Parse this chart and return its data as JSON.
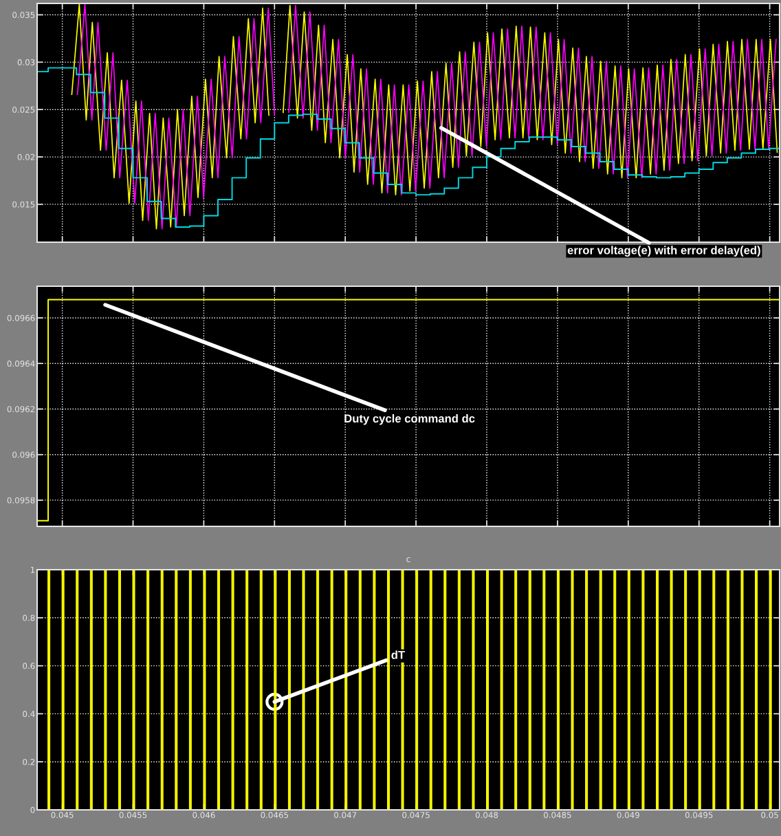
{
  "chart_data": [
    {
      "type": "line",
      "xlim": [
        0.044822,
        0.05007
      ],
      "ylim": [
        0.011,
        0.0362
      ],
      "xticks": [
        0.045,
        0.0455,
        0.046,
        0.0465,
        0.047,
        0.0475,
        0.048,
        0.0485,
        0.049,
        0.0495,
        0.05
      ],
      "yticks": [
        0.015,
        0.02,
        0.025,
        0.03,
        0.035
      ],
      "tick_labels": "y",
      "grid": true,
      "annotations": [
        {
          "text": "error voltage(e) with error delay(ed)",
          "x": 0.047678,
          "y": 0.02306
        }
      ],
      "series": [
        {
          "color": "#ffff00",
          "x": [
            0.045067,
            0.04512,
            0.045169,
            0.045212,
            0.04527,
            0.045318,
            0.045366,
            0.045419,
            0.045472,
            0.04552,
            0.045568,
            0.045617,
            0.045665,
            0.045713,
            0.045766,
            0.045814,
            0.045862,
            0.045915,
            0.045959,
            0.046012,
            0.04606,
            0.046108,
            0.046161,
            0.046209,
            0.046262,
            0.046315,
            0.046363,
            0.046416,
            0.04646,
            0.046513,
            0.046561,
            0.046609,
            0.046662,
            0.04671,
            0.046763,
            0.046811,
            0.046859,
            0.046912,
            0.046961,
            0.047014,
            0.047062,
            0.04711,
            0.047158,
            0.047211,
            0.047259,
            0.047307,
            0.047356,
            0.047409,
            0.047457,
            0.04751,
            0.047558,
            0.047611,
            0.047659,
            0.047712,
            0.04776,
            0.047808,
            0.047856,
            0.047909,
            0.047958,
            0.048006,
            0.048059,
            0.048107,
            0.04816,
            0.048208,
            0.048256,
            0.048309,
            0.048357,
            0.04841,
            0.048459,
            0.048507,
            0.048555,
            0.048608,
            0.048656,
            0.048704,
            0.048752,
            0.048805,
            0.048854,
            0.048907,
            0.048955,
            0.049003,
            0.049056,
            0.049104,
            0.049157,
            0.049205,
            0.049253,
            0.049302,
            0.049355,
            0.049403,
            0.049451,
            0.049504,
            0.049552,
            0.0496,
            0.049653,
            0.049701,
            0.049754,
            0.049803,
            0.049856,
            0.049904,
            0.049952,
            0.050005,
            0.050053
          ],
          "values": [
            0.0266,
            0.0361,
            0.0239,
            0.0342,
            0.0207,
            0.031,
            0.0178,
            0.0281,
            0.0151,
            0.0259,
            0.0133,
            0.0246,
            0.0124,
            0.0241,
            0.0126,
            0.025,
            0.0138,
            0.0264,
            0.0157,
            0.0282,
            0.0178,
            0.0306,
            0.0199,
            0.0327,
            0.0219,
            0.0346,
            0.0236,
            0.0357,
            0.0244,
            null,
            0.0247,
            0.036,
            0.0241,
            0.0353,
            0.0228,
            0.0339,
            0.0215,
            0.0324,
            0.0199,
            0.0308,
            0.0184,
            0.0293,
            0.0171,
            0.0282,
            0.0162,
            0.0276,
            0.016,
            0.0276,
            0.0164,
            0.028,
            0.0167,
            0.029,
            0.0178,
            0.0299,
            0.0189,
            0.0311,
            0.0201,
            0.0321,
            0.0211,
            0.0331,
            0.0218,
            0.0335,
            0.022,
            0.0338,
            0.022,
            0.0337,
            0.0218,
            0.0331,
            0.0213,
            0.0324,
            0.0204,
            0.0315,
            0.0195,
            0.0306,
            0.0188,
            0.0301,
            0.0182,
            0.0296,
            0.0178,
            0.0293,
            0.0178,
            0.0294,
            0.0182,
            0.0297,
            0.0186,
            0.0303,
            0.0193,
            0.0308,
            0.0196,
            0.0314,
            0.0201,
            0.0319,
            0.0204,
            0.0322,
            0.0207,
            0.0324,
            0.0208,
            0.0324,
            0.0208,
            0.0324,
            0.0205
          ]
        },
        {
          "color": "#ff00ff",
          "x": [
            0.045107,
            0.04516,
            0.045209,
            0.045252,
            0.04531,
            0.045358,
            0.045406,
            0.045459,
            0.045512,
            0.04556,
            0.045608,
            0.045657,
            0.045705,
            0.045753,
            0.045806,
            0.045854,
            0.045902,
            0.045955,
            0.045999,
            0.046052,
            0.0461,
            0.046148,
            0.046201,
            0.046249,
            0.046302,
            0.046355,
            0.046403,
            0.046456,
            0.0465,
            0.046553,
            0.046601,
            0.046649,
            0.046702,
            0.04675,
            0.046803,
            0.046851,
            0.046899,
            0.046952,
            0.047001,
            0.047054,
            0.047102,
            0.04715,
            0.047198,
            0.047251,
            0.047299,
            0.047347,
            0.047396,
            0.047449,
            0.047497,
            0.04755,
            0.047598,
            0.047651,
            0.047699,
            0.047752,
            0.0478,
            0.047848,
            0.047896,
            0.047949,
            0.047998,
            0.048046,
            0.048099,
            0.048147,
            0.0482,
            0.048248,
            0.048296,
            0.048349,
            0.048397,
            0.04845,
            0.048499,
            0.048547,
            0.048595,
            0.048648,
            0.048696,
            0.048744,
            0.048792,
            0.048845,
            0.048894,
            0.048947,
            0.048995,
            0.049043,
            0.049096,
            0.049144,
            0.049197,
            0.049245,
            0.049293,
            0.049342,
            0.049395,
            0.049443,
            0.049491,
            0.049544,
            0.049592,
            0.04964,
            0.049693,
            0.049741,
            0.049794,
            0.049843,
            0.049896,
            0.049944,
            0.049992,
            0.050045
          ],
          "values": [
            0.0266,
            0.0361,
            0.0239,
            0.0342,
            0.0207,
            0.031,
            0.0178,
            0.0281,
            0.0151,
            0.0259,
            0.0133,
            0.0246,
            0.0124,
            0.0241,
            0.0126,
            0.025,
            0.0138,
            0.0264,
            0.0157,
            0.0282,
            0.0178,
            0.0306,
            0.0199,
            0.0327,
            0.0219,
            0.0346,
            0.0236,
            0.0357,
            0.0244,
            null,
            0.0247,
            0.036,
            0.0241,
            0.0353,
            0.0228,
            0.0339,
            0.0215,
            0.0324,
            0.0199,
            0.0308,
            0.0184,
            0.0293,
            0.0171,
            0.0282,
            0.0162,
            0.0276,
            0.016,
            0.0276,
            0.0164,
            0.028,
            0.0167,
            0.029,
            0.0178,
            0.0299,
            0.0189,
            0.0311,
            0.0201,
            0.0321,
            0.0211,
            0.0331,
            0.0218,
            0.0335,
            0.022,
            0.0338,
            0.022,
            0.0337,
            0.0218,
            0.0331,
            0.0213,
            0.0324,
            0.0204,
            0.0315,
            0.0195,
            0.0306,
            0.0188,
            0.0301,
            0.0182,
            0.0296,
            0.0178,
            0.0293,
            0.0178,
            0.0294,
            0.0182,
            0.0297,
            0.0186,
            0.0303,
            0.0193,
            0.0308,
            0.0196,
            0.0314,
            0.0201,
            0.0319,
            0.0204,
            0.0322,
            0.0207,
            0.0324,
            0.0208,
            0.0324,
            0.0208,
            0.0324
          ]
        },
        {
          "type": "step",
          "color": "#00d8e0",
          "x": [
            0.044822,
            0.0449,
            0.045,
            0.0451,
            0.0452,
            0.0453,
            0.0454,
            0.0455,
            0.0456,
            0.0457,
            0.0458,
            0.0459,
            0.046,
            0.0461,
            0.0462,
            0.0463,
            0.0464,
            0.0465,
            0.0466,
            0.0467,
            0.0468,
            0.0469,
            0.047,
            0.0471,
            0.0472,
            0.0473,
            0.0474,
            0.0475,
            0.0476,
            0.0477,
            0.0478,
            0.0479,
            0.048,
            0.0481,
            0.0482,
            0.0483,
            0.0484,
            0.0485,
            0.0486,
            0.0487,
            0.0488,
            0.0489,
            0.049,
            0.0491,
            0.0492,
            0.0493,
            0.0494,
            0.0495,
            0.0496,
            0.0497,
            0.0498,
            0.0499,
            0.05,
            0.05007
          ],
          "values": [
            0.029,
            0.0294,
            0.0294,
            0.0287,
            0.0268,
            0.0241,
            0.0209,
            0.0178,
            0.0153,
            0.0135,
            0.0126,
            0.0127,
            0.0138,
            0.0155,
            0.0178,
            0.0199,
            0.0219,
            0.0236,
            0.0244,
            0.0245,
            0.024,
            0.023,
            0.0215,
            0.0199,
            0.0183,
            0.0171,
            0.0162,
            0.016,
            0.0161,
            0.0167,
            0.0178,
            0.0189,
            0.02,
            0.0209,
            0.0216,
            0.0221,
            0.0221,
            0.0218,
            0.0211,
            0.0204,
            0.0195,
            0.0187,
            0.0181,
            0.0179,
            0.0178,
            0.0179,
            0.0183,
            0.0187,
            0.0194,
            0.0199,
            0.0204,
            0.0208,
            0.0209,
            0.0209
          ]
        }
      ]
    },
    {
      "type": "step",
      "xlim": [
        0.044822,
        0.05007
      ],
      "ylim": [
        0.095685,
        0.096739
      ],
      "xticks": [
        0.045,
        0.0455,
        0.046,
        0.0465,
        0.047,
        0.0475,
        0.048,
        0.0485,
        0.049,
        0.0495,
        0.05
      ],
      "yticks": [
        0.0958,
        0.096,
        0.0962,
        0.0964,
        0.0966
      ],
      "tick_labels": "y",
      "grid": true,
      "annotations": [
        "Duty cycle command dc"
      ],
      "series": [
        {
          "color": "#ffff00",
          "x": [
            0.044822,
            0.0449,
            0.05007
          ],
          "values": [
            0.09571,
            0.09668,
            0.09668
          ]
        }
      ]
    },
    {
      "type": "step",
      "title": "c",
      "xlim": [
        0.044822,
        0.05007
      ],
      "ylim": [
        0,
        1
      ],
      "xticks": [
        0.045,
        0.0455,
        0.046,
        0.0465,
        0.047,
        0.0475,
        0.048,
        0.0485,
        0.049,
        0.0495,
        0.05
      ],
      "yticks": [
        0,
        0.2,
        0.4,
        0.6,
        0.8,
        1
      ],
      "grid": true,
      "annotations": [
        {
          "text": "dT",
          "x": 0.0465,
          "y": 0.45
        }
      ],
      "series": [
        {
          "color": "#ffff00",
          "x": [
            0.044822,
            0.0449,
            0.04491,
            0.045,
            0.04501,
            0.0451,
            0.04511,
            0.0452,
            0.04521,
            0.0453,
            0.04531,
            0.0454,
            0.04541,
            0.0455,
            0.04551,
            0.0456,
            0.04561,
            0.0457,
            0.04571,
            0.0458,
            0.04581,
            0.0459,
            0.04591,
            0.046,
            0.04601,
            0.0461,
            0.04611,
            0.0462,
            0.04621,
            0.0463,
            0.04631,
            0.0464,
            0.04641,
            0.0465,
            0.04651,
            0.0466,
            0.04661,
            0.0467,
            0.04671,
            0.0468,
            0.04681,
            0.0469,
            0.04691,
            0.047,
            0.04701,
            0.0471,
            0.04711,
            0.0472,
            0.04721,
            0.0473,
            0.04731,
            0.0474,
            0.04741,
            0.0475,
            0.04751,
            0.0476,
            0.04761,
            0.0477,
            0.04771,
            0.0478,
            0.04781,
            0.0479,
            0.04791,
            0.048,
            0.04801,
            0.0481,
            0.04811,
            0.0482,
            0.04821,
            0.0483,
            0.04831,
            0.0484,
            0.04841,
            0.0485,
            0.04851,
            0.0486,
            0.04861,
            0.0487,
            0.04871,
            0.0488,
            0.04881,
            0.0489,
            0.04891,
            0.049,
            0.04901,
            0.0491,
            0.04911,
            0.0492,
            0.04921,
            0.0493,
            0.04931,
            0.0494,
            0.04941,
            0.0495,
            0.04951,
            0.0496,
            0.04961,
            0.0497,
            0.04971,
            0.0498,
            0.04981,
            0.0499,
            0.04991,
            0.05,
            0.05001,
            0.05007
          ],
          "values": [
            0,
            1,
            0,
            1,
            0,
            1,
            0,
            1,
            0,
            1,
            0,
            1,
            0,
            1,
            0,
            1,
            0,
            1,
            0,
            1,
            0,
            1,
            0,
            1,
            0,
            1,
            0,
            1,
            0,
            1,
            0,
            1,
            0,
            1,
            0,
            1,
            0,
            1,
            0,
            1,
            0,
            1,
            0,
            1,
            0,
            1,
            0,
            1,
            0,
            1,
            0,
            1,
            0,
            1,
            0,
            1,
            0,
            1,
            0,
            1,
            0,
            1,
            0,
            1,
            0,
            1,
            0,
            1,
            0,
            1,
            0,
            1,
            0,
            1,
            0,
            1,
            0,
            1,
            0,
            1,
            0,
            1,
            0,
            1,
            0,
            1,
            0,
            1,
            0,
            1,
            0,
            1,
            0,
            1,
            0,
            1,
            0,
            1,
            0,
            1,
            0,
            1,
            0,
            1,
            0,
            0
          ]
        }
      ]
    }
  ]
}
